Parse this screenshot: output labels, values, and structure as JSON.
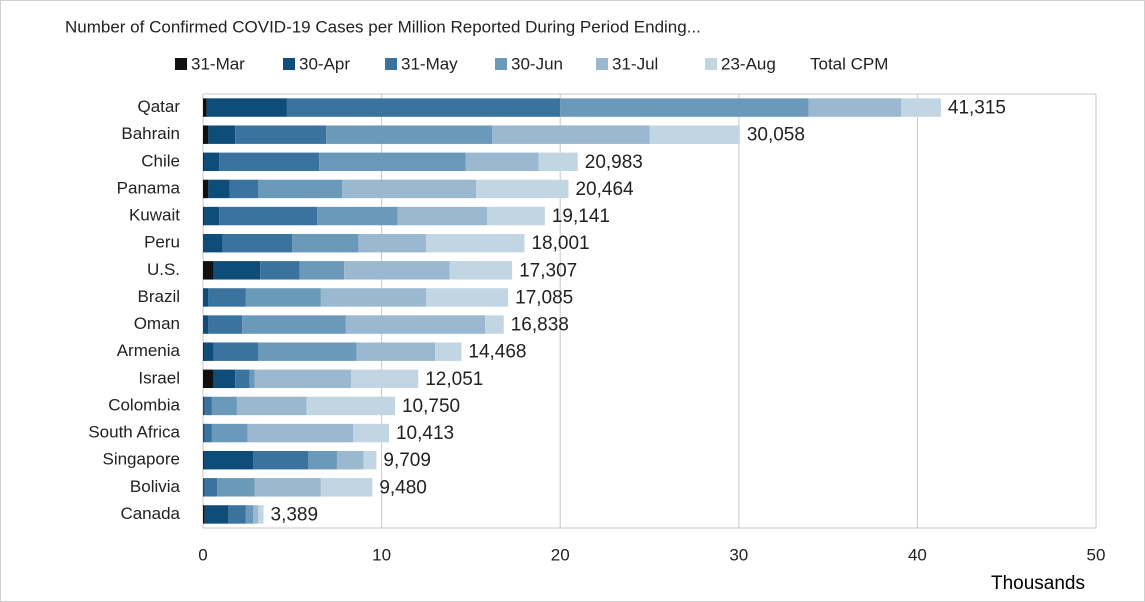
{
  "chart_data": {
    "type": "stacked-bar-horizontal",
    "title": "Number of Confirmed COVID-19 Cases per Million Reported During Period Ending...",
    "x_axis_unit_label": "Thousands",
    "categories": [
      "Qatar",
      "Bahrain",
      "Chile",
      "Panama",
      "Kuwait",
      "Peru",
      "U.S.",
      "Brazil",
      "Oman",
      "Armenia",
      "Israel",
      "Colombia",
      "South Africa",
      "Singapore",
      "Bolivia",
      "Canada"
    ],
    "series": [
      {
        "name": "31-Mar",
        "color": "#111111",
        "values": [
          200,
          300,
          50,
          300,
          50,
          0,
          600,
          0,
          0,
          50,
          600,
          0,
          0,
          50,
          0,
          100
        ]
      },
      {
        "name": "30-Apr",
        "color": "#0e4d7a",
        "values": [
          4500,
          1500,
          850,
          1200,
          850,
          1100,
          2600,
          300,
          300,
          550,
          1200,
          100,
          100,
          2750,
          100,
          1300
        ]
      },
      {
        "name": "31-May",
        "color": "#3a749e",
        "values": [
          15300,
          5100,
          5600,
          1600,
          5500,
          3900,
          2200,
          2100,
          1900,
          2500,
          800,
          400,
          400,
          3100,
          700,
          1000
        ]
      },
      {
        "name": "30-Jun",
        "color": "#6b99ba",
        "values": [
          13900,
          9300,
          8200,
          4700,
          4500,
          3700,
          2500,
          4200,
          5800,
          5500,
          300,
          1400,
          2000,
          1600,
          2100,
          400
        ]
      },
      {
        "name": "31-Jul",
        "color": "#9ab8cf",
        "values": [
          5200,
          8800,
          4100,
          7500,
          5000,
          3800,
          5900,
          5900,
          7800,
          4400,
          5400,
          3900,
          5900,
          1500,
          3700,
          300
        ]
      },
      {
        "name": "23-Aug",
        "color": "#c2d5e2",
        "values": [
          2215,
          5058,
          2183,
          5164,
          3241,
          5501,
          3507,
          4585,
          1038,
          1468,
          3751,
          4950,
          2013,
          709,
          2880,
          289
        ]
      }
    ],
    "totals": {
      "name": "Total CPM",
      "values": [
        41315,
        30058,
        20983,
        20464,
        19141,
        18001,
        17307,
        17085,
        16838,
        14468,
        12051,
        10750,
        10413,
        9709,
        9480,
        3389
      ],
      "value_labels": [
        "41,315",
        "30,058",
        "20,983",
        "20,464",
        "19,141",
        "18,001",
        "17,307",
        "17,085",
        "16,838",
        "14,468",
        "12,051",
        "10,750",
        "10,413",
        "9,709",
        "9,480",
        "3,389"
      ]
    },
    "xlim": [
      0,
      50000
    ],
    "xticks": [
      0,
      {
        "value": 10000,
        "label": "10"
      },
      {
        "value": 20000,
        "label": "20"
      },
      {
        "value": 30000,
        "label": "30"
      },
      {
        "value": 40000,
        "label": "40"
      },
      {
        "value": 50000,
        "label": "50"
      }
    ],
    "grid": true
  }
}
